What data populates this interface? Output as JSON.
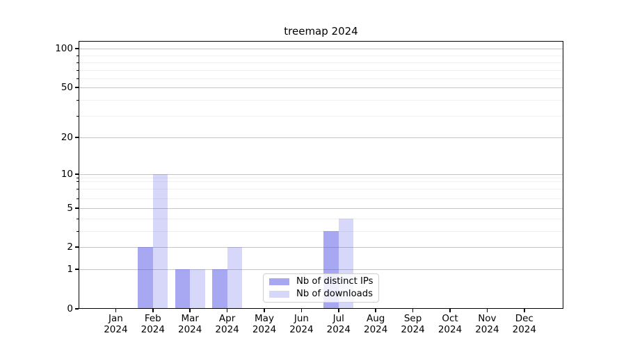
{
  "chart_data": {
    "type": "bar",
    "title": "treemap 2024",
    "x": {
      "months": [
        "Jan",
        "Feb",
        "Mar",
        "Apr",
        "May",
        "Jun",
        "Jul",
        "Aug",
        "Sep",
        "Oct",
        "Nov",
        "Dec"
      ],
      "year": "2024"
    },
    "series": [
      {
        "name": "Nb of distinct IPs",
        "color": "rgba(88,88,230,0.52)",
        "values": [
          0,
          2,
          1,
          1,
          0,
          0,
          3,
          0,
          0,
          0,
          0,
          0
        ]
      },
      {
        "name": "Nb of downloads",
        "color": "rgba(88,88,230,0.24)",
        "values": [
          0,
          10,
          1,
          2,
          0,
          0,
          4,
          0,
          0,
          0,
          0,
          0
        ]
      }
    ],
    "yaxis": {
      "scale": "symlog",
      "major_ticks": [
        0,
        1,
        2,
        5,
        10,
        20,
        50,
        100
      ],
      "minor_ticks": [
        3,
        4,
        6,
        7,
        8,
        9,
        30,
        40,
        60,
        70,
        80,
        90
      ]
    },
    "grid": {
      "horizontal": true
    },
    "legend": {
      "entries": [
        "Nb of distinct IPs",
        "Nb of downloads"
      ],
      "position": "inside lower-center"
    },
    "colors": {
      "major_grid": "#c4c4c4",
      "minor_grid": "#efefef",
      "axis": "#000000",
      "background": "#ffffff"
    }
  }
}
